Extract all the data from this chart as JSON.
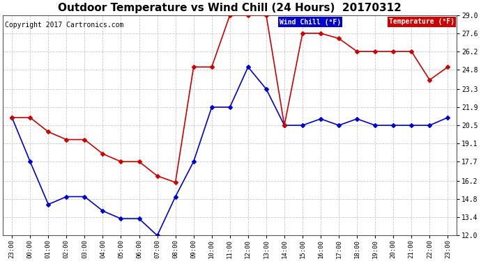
{
  "title": "Outdoor Temperature vs Wind Chill (24 Hours)  20170312",
  "copyright": "Copyright 2017 Cartronics.com",
  "x_labels": [
    "23:00",
    "00:00",
    "01:00",
    "02:00",
    "03:00",
    "04:00",
    "05:00",
    "06:00",
    "07:00",
    "08:00",
    "09:00",
    "10:00",
    "11:00",
    "12:00",
    "13:00",
    "14:00",
    "15:00",
    "16:00",
    "17:00",
    "18:00",
    "19:00",
    "20:00",
    "21:00",
    "22:00",
    "23:00"
  ],
  "temperature": [
    21.1,
    21.1,
    20.0,
    19.4,
    19.4,
    18.3,
    17.7,
    17.7,
    16.6,
    16.1,
    25.0,
    25.0,
    29.0,
    29.0,
    29.0,
    20.5,
    27.6,
    27.6,
    27.2,
    26.2,
    26.2,
    26.2,
    26.2,
    24.0,
    25.0
  ],
  "wind_chill": [
    21.1,
    17.7,
    14.4,
    15.0,
    15.0,
    13.9,
    13.3,
    13.3,
    12.0,
    15.0,
    17.7,
    21.9,
    21.9,
    25.0,
    23.3,
    20.5,
    20.5,
    21.0,
    20.5,
    21.0,
    20.5,
    20.5,
    20.5,
    20.5,
    21.1
  ],
  "ylim": [
    12.0,
    29.0
  ],
  "yticks": [
    12.0,
    13.4,
    14.8,
    16.2,
    17.7,
    19.1,
    20.5,
    21.9,
    23.3,
    24.8,
    26.2,
    27.6,
    29.0
  ],
  "wind_chill_color": "#0000cc",
  "temperature_color": "#cc0000",
  "legend_wind_bg": "#0000cc",
  "legend_temp_bg": "#cc0000",
  "background_color": "#ffffff",
  "grid_color": "#bbbbbb",
  "title_fontsize": 11,
  "copyright_fontsize": 7
}
